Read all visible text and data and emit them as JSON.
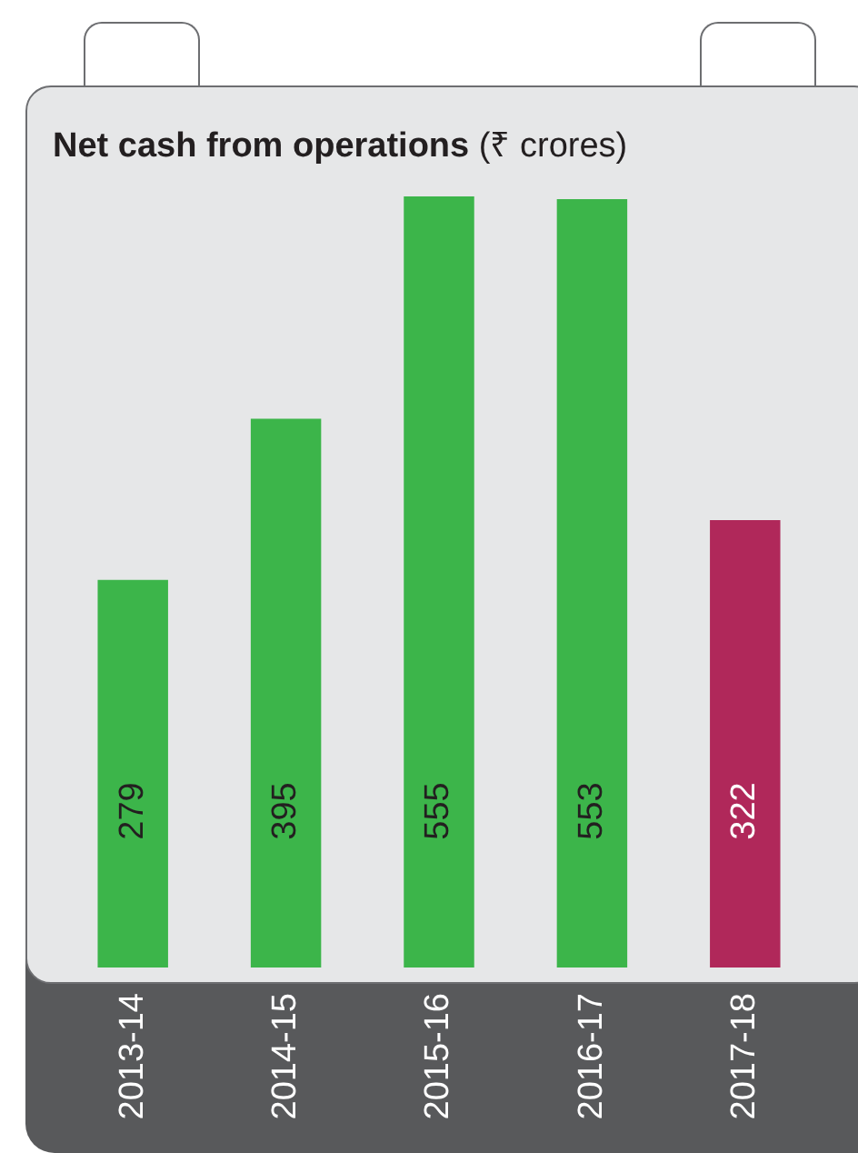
{
  "chart_data": {
    "type": "bar",
    "title": "Net cash from operations (₹ crores)",
    "categories": [
      "2013-14",
      "2014-15",
      "2015-16",
      "2016-17",
      "2017-18"
    ],
    "values": [
      279,
      395,
      555,
      553,
      322
    ],
    "colors": [
      "#3cb54a",
      "#3cb54a",
      "#3cb54a",
      "#3cb54a",
      "#b0285a"
    ],
    "data_labels": true,
    "grid": false,
    "legend": false
  }
}
